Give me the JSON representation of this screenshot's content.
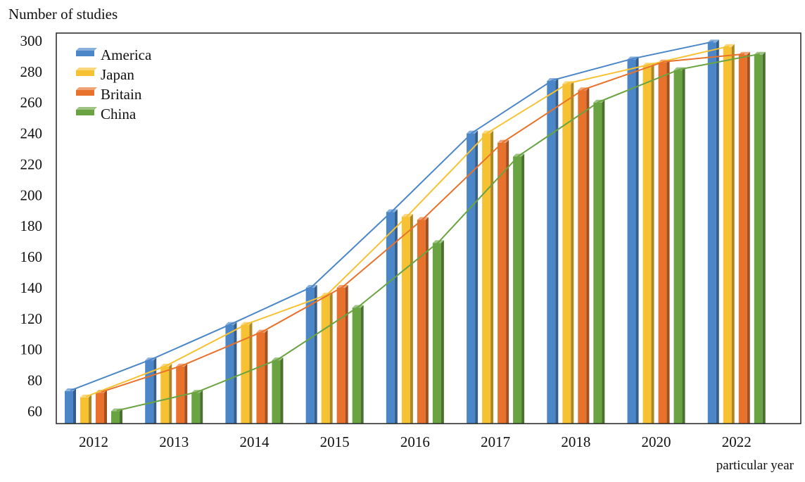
{
  "chart_data": {
    "type": "bar",
    "ylabel": "Number of studies",
    "xlabel": "particular year",
    "categories": [
      "2012",
      "2013",
      "2014",
      "2015",
      "2016",
      "2017",
      "2018",
      "2020",
      "2022"
    ],
    "y_ticks": [
      60,
      80,
      100,
      120,
      140,
      160,
      180,
      200,
      220,
      240,
      260,
      280,
      300
    ],
    "ylim": [
      52,
      300
    ],
    "grid": false,
    "legend_position": "top-left",
    "series": [
      {
        "name": "America",
        "color": "#4a86c8",
        "values": [
          73,
          93,
          116,
          140,
          189,
          240,
          274,
          288,
          299
        ]
      },
      {
        "name": "Japan",
        "color": "#f6c233",
        "values": [
          69,
          89,
          116,
          135,
          186,
          240,
          272,
          284,
          296
        ]
      },
      {
        "name": "Britain",
        "color": "#e8722c",
        "values": [
          72,
          89,
          111,
          140,
          184,
          234,
          268,
          286,
          291
        ]
      },
      {
        "name": "China",
        "color": "#6aa341",
        "values": [
          60,
          72,
          93,
          127,
          169,
          225,
          260,
          281,
          291
        ]
      }
    ]
  }
}
